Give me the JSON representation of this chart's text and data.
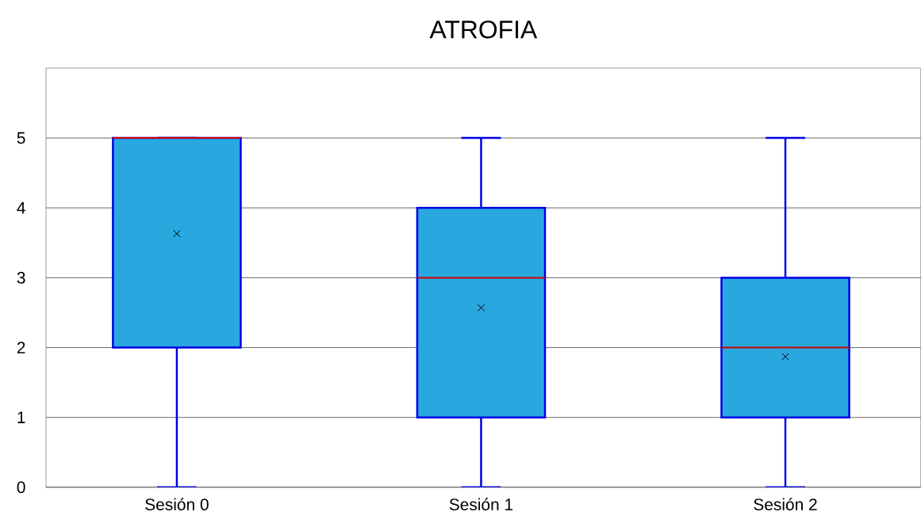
{
  "chart_data": {
    "type": "box",
    "title": "ATROFIA",
    "categories": [
      "Sesión 0",
      "Sesión 1",
      "Sesión 2"
    ],
    "boxes": [
      {
        "low": 0,
        "q1": 2,
        "median": 5,
        "q3": 5,
        "high": 5,
        "mean": 3.63
      },
      {
        "low": 0,
        "q1": 1,
        "median": 3,
        "q3": 4,
        "high": 5,
        "mean": 2.57
      },
      {
        "low": 0,
        "q1": 1,
        "median": 2,
        "q3": 3,
        "high": 5,
        "mean": 1.87
      }
    ],
    "color": "#29a8e0",
    "marker": "cross",
    "grid": "y",
    "ylim": [
      0,
      6
    ],
    "yticks": [
      0,
      1,
      2,
      3,
      4,
      5
    ]
  }
}
